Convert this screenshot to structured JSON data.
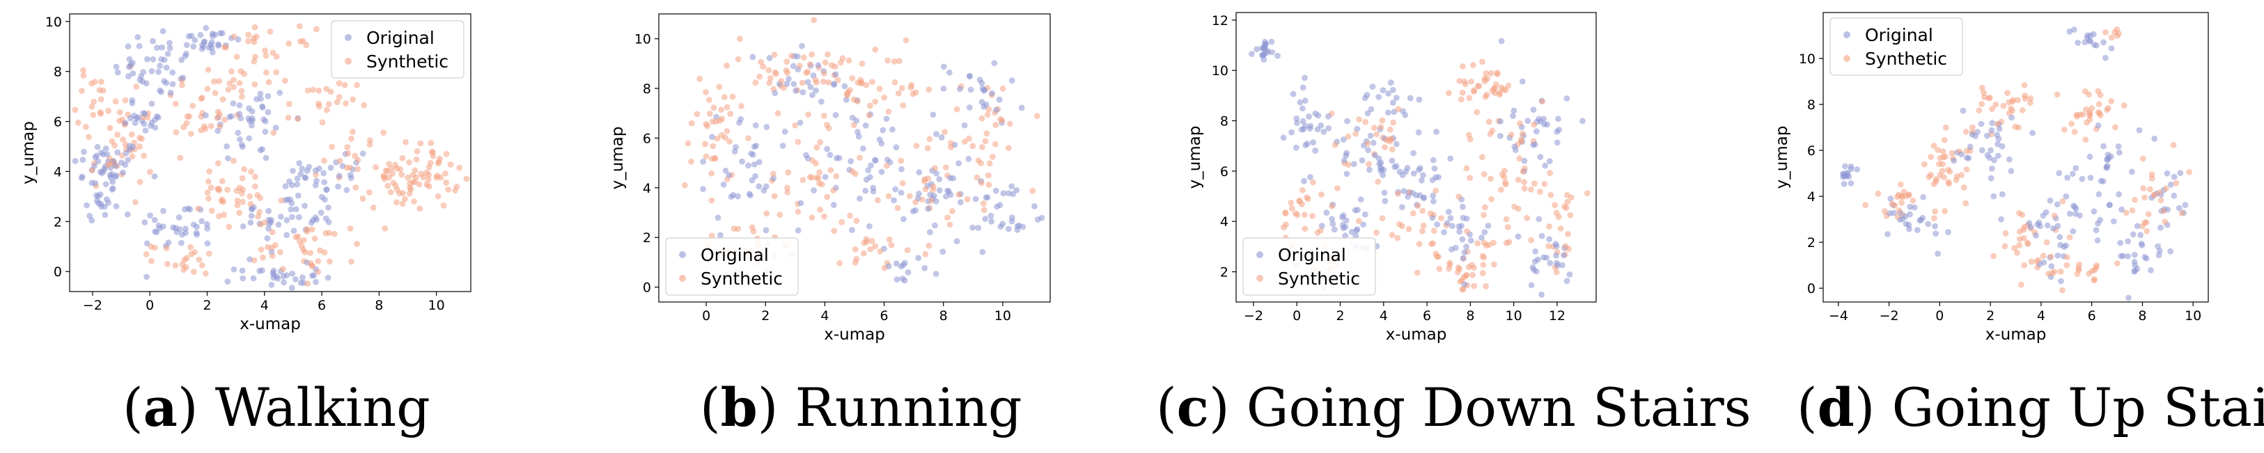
{
  "chart_data": [
    {
      "type": "scatter",
      "panel_letter": "a",
      "panel_title": "Walking",
      "xlabel": "x-umap",
      "ylabel": "y_umap",
      "xlim": [
        -2.8,
        11.2
      ],
      "ylim": [
        -0.8,
        10.3
      ],
      "xticks": [
        -2,
        0,
        2,
        4,
        6,
        8,
        10
      ],
      "yticks": [
        0,
        2,
        4,
        6,
        8,
        10
      ],
      "legend": {
        "placement": "top-right",
        "entries": [
          "Original",
          "Synthetic"
        ]
      },
      "series": [
        {
          "name": "Original",
          "color": "#8e98d4",
          "clusters": [
            [
              -1.5,
              4.2,
              1.0,
              0.9,
              45
            ],
            [
              0.2,
              8.2,
              1.2,
              1.0,
              40
            ],
            [
              2.0,
              9.2,
              1.0,
              0.6,
              30
            ],
            [
              3.5,
              6.0,
              1.2,
              1.4,
              40
            ],
            [
              1.0,
              1.8,
              1.2,
              0.8,
              35
            ],
            [
              4.8,
              2.3,
              1.4,
              1.3,
              50
            ],
            [
              4.5,
              -0.2,
              1.2,
              0.4,
              30
            ],
            [
              6.5,
              4.0,
              1.0,
              1.2,
              25
            ],
            [
              -1.8,
              2.6,
              0.5,
              0.4,
              15
            ],
            [
              -0.2,
              6.2,
              0.8,
              0.6,
              20
            ]
          ]
        },
        {
          "name": "Synthetic",
          "color": "#f4a384",
          "clusters": [
            [
              -1.6,
              6.8,
              0.8,
              1.2,
              30
            ],
            [
              -1.0,
              4.5,
              0.9,
              1.0,
              30
            ],
            [
              1.8,
              6.5,
              1.5,
              1.4,
              40
            ],
            [
              4.0,
              8.5,
              1.4,
              1.0,
              35
            ],
            [
              3.0,
              3.0,
              1.5,
              1.2,
              40
            ],
            [
              5.5,
              1.0,
              1.5,
              0.9,
              40
            ],
            [
              9.3,
              3.8,
              1.2,
              1.1,
              70
            ],
            [
              7.3,
              4.5,
              1.0,
              1.2,
              25
            ],
            [
              1.3,
              0.5,
              1.0,
              0.5,
              20
            ],
            [
              6.0,
              6.6,
              1.0,
              0.9,
              20
            ]
          ]
        }
      ]
    },
    {
      "type": "scatter",
      "panel_letter": "b",
      "panel_title": "Running",
      "xlabel": "x-umap",
      "ylabel": "y_umap",
      "xlim": [
        -1.6,
        11.6
      ],
      "ylim": [
        -0.6,
        11.0
      ],
      "xticks": [
        0,
        2,
        4,
        6,
        8,
        10
      ],
      "yticks": [
        0,
        2,
        4,
        6,
        8,
        10
      ],
      "legend": {
        "placement": "bottom-left",
        "entries": [
          "Original",
          "Synthetic"
        ]
      },
      "series": [
        {
          "name": "Original",
          "color": "#8e98d4",
          "clusters": [
            [
              1.5,
              5.0,
              1.4,
              2.2,
              40
            ],
            [
              5.0,
              4.5,
              1.5,
              2.5,
              45
            ],
            [
              8.0,
              4.0,
              1.5,
              2.3,
              45
            ],
            [
              10.3,
              3.0,
              0.8,
              1.5,
              25
            ],
            [
              6.8,
              0.6,
              0.6,
              0.5,
              12
            ],
            [
              9.0,
              7.8,
              1.2,
              1.0,
              25
            ],
            [
              3.5,
              8.5,
              1.5,
              1.0,
              25
            ]
          ]
        },
        {
          "name": "Synthetic",
          "color": "#f4a384",
          "clusters": [
            [
              0.2,
              6.5,
              1.0,
              2.3,
              40
            ],
            [
              3.0,
              8.8,
              1.8,
              1.0,
              45
            ],
            [
              3.5,
              4.5,
              1.5,
              2.0,
              40
            ],
            [
              6.0,
              8.0,
              1.3,
              1.2,
              35
            ],
            [
              7.5,
              4.0,
              1.5,
              2.0,
              35
            ],
            [
              9.5,
              6.0,
              1.2,
              2.0,
              30
            ],
            [
              1.5,
              1.8,
              1.2,
              0.8,
              25
            ],
            [
              5.5,
              1.5,
              1.0,
              0.8,
              20
            ]
          ]
        }
      ]
    },
    {
      "type": "scatter",
      "panel_letter": "c",
      "panel_title": "Going Down Stairs",
      "xlabel": "x-umap",
      "ylabel": "y_umap",
      "xlim": [
        -2.8,
        13.8
      ],
      "ylim": [
        0.8,
        12.3
      ],
      "xticks": [
        -2,
        0,
        2,
        4,
        6,
        8,
        10,
        12
      ],
      "yticks": [
        2,
        4,
        6,
        8,
        10,
        12
      ],
      "legend": {
        "placement": "bottom-left",
        "entries": [
          "Original",
          "Synthetic"
        ]
      },
      "series": [
        {
          "name": "Original",
          "color": "#8e98d4",
          "clusters": [
            [
              -1.5,
              10.8,
              0.4,
              0.5,
              20
            ],
            [
              0.5,
              7.5,
              1.0,
              1.5,
              30
            ],
            [
              3.5,
              6.8,
              1.5,
              1.2,
              35
            ],
            [
              5.5,
              5.5,
              1.2,
              1.6,
              35
            ],
            [
              2.5,
              4.0,
              1.5,
              0.8,
              25
            ],
            [
              7.8,
              3.5,
              1.2,
              1.5,
              25
            ],
            [
              10.8,
              7.5,
              1.5,
              1.8,
              35
            ],
            [
              11.5,
              2.5,
              1.0,
              1.2,
              25
            ],
            [
              4.0,
              9.0,
              1.2,
              0.6,
              15
            ]
          ]
        },
        {
          "name": "Synthetic",
          "color": "#f4a384",
          "clusters": [
            [
              8.5,
              9.3,
              1.3,
              0.7,
              35
            ],
            [
              10.0,
              6.0,
              1.8,
              2.2,
              50
            ],
            [
              8.0,
              2.2,
              1.5,
              1.0,
              35
            ],
            [
              5.5,
              4.0,
              1.5,
              1.5,
              30
            ],
            [
              0.5,
              4.5,
              1.2,
              1.0,
              25
            ],
            [
              3.0,
              7.5,
              1.5,
              1.0,
              25
            ],
            [
              12.2,
              4.0,
              0.8,
              1.5,
              20
            ],
            [
              1.5,
              2.3,
              1.0,
              0.5,
              15
            ]
          ]
        }
      ]
    },
    {
      "type": "scatter",
      "panel_letter": "d",
      "panel_title": "Going Up Stairs",
      "xlabel": "x-umap",
      "ylabel": "y_umap",
      "xlim": [
        -4.6,
        10.6
      ],
      "ylim": [
        -0.6,
        12.0
      ],
      "xticks": [
        -4,
        -2,
        0,
        2,
        4,
        6,
        8,
        10
      ],
      "yticks": [
        0,
        2,
        4,
        6,
        8,
        10
      ],
      "legend": {
        "placement": "top-left",
        "entries": [
          "Original",
          "Synthetic"
        ]
      },
      "series": [
        {
          "name": "Original",
          "color": "#8e98d4",
          "clusters": [
            [
              -3.7,
              4.8,
              0.3,
              0.4,
              15
            ],
            [
              -1.0,
              3.0,
              1.0,
              0.8,
              25
            ],
            [
              1.8,
              5.8,
              1.2,
              1.6,
              35
            ],
            [
              4.5,
              3.0,
              1.2,
              1.8,
              35
            ],
            [
              6.8,
              5.0,
              1.2,
              2.0,
              35
            ],
            [
              7.8,
              1.5,
              1.0,
              1.0,
              25
            ],
            [
              6.0,
              10.8,
              0.6,
              0.4,
              15
            ],
            [
              9.0,
              4.0,
              0.7,
              1.0,
              15
            ]
          ]
        },
        {
          "name": "Synthetic",
          "color": "#f4a384",
          "clusters": [
            [
              0.3,
              5.5,
              1.2,
              1.5,
              40
            ],
            [
              2.5,
              8.0,
              1.2,
              1.0,
              30
            ],
            [
              -1.8,
              3.8,
              0.8,
              0.6,
              20
            ],
            [
              3.5,
              2.2,
              1.2,
              1.2,
              30
            ],
            [
              6.0,
              7.5,
              1.2,
              1.2,
              30
            ],
            [
              8.5,
              4.0,
              1.0,
              1.5,
              25
            ],
            [
              5.5,
              0.8,
              1.2,
              0.6,
              20
            ],
            [
              7.0,
              11.2,
              0.4,
              0.2,
              6
            ]
          ]
        }
      ]
    }
  ]
}
